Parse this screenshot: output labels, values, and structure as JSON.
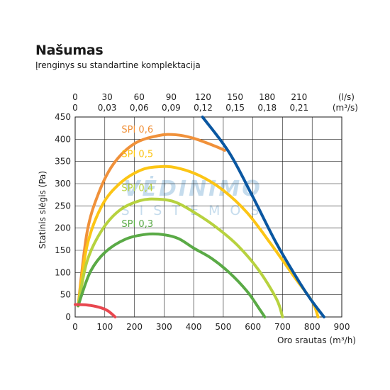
{
  "header": {
    "title": "Našumas",
    "subtitle": "Įrenginys su standartine komplektacija"
  },
  "watermark": {
    "line1": "VĖDINIMO",
    "line2": "SISTEMOS",
    "color": "#bcd6ea"
  },
  "chart_data": {
    "type": "line",
    "xlabel": "Oro srautas (m³/h)",
    "ylabel": "Statinis slėgis (Pa)",
    "xlim": [
      0,
      900
    ],
    "ylim": [
      0,
      450
    ],
    "x_ticks": [
      0,
      100,
      200,
      300,
      400,
      500,
      600,
      700,
      800,
      900
    ],
    "y_ticks": [
      0,
      50,
      100,
      150,
      200,
      250,
      300,
      350,
      400,
      450
    ],
    "grid": true,
    "top_axis": {
      "unit_ls": "(l/s)",
      "unit_m3s": "(m³/s)",
      "ticks": [
        {
          "ls": "0",
          "m3s": "0"
        },
        {
          "ls": "30",
          "m3s": "0,03"
        },
        {
          "ls": "60",
          "m3s": "0,06"
        },
        {
          "ls": "90",
          "m3s": "0,09"
        },
        {
          "ls": "120",
          "m3s": "0,12"
        },
        {
          "ls": "150",
          "m3s": "0,15"
        },
        {
          "ls": "180",
          "m3s": "0,18"
        },
        {
          "ls": "210",
          "m3s": "0,21"
        }
      ]
    },
    "series": [
      {
        "name": "SPI 0,6",
        "color": "#f0913a",
        "label_pos": [
          210,
          415
        ],
        "points": [
          [
            10,
            25
          ],
          [
            40,
            190
          ],
          [
            80,
            280
          ],
          [
            130,
            345
          ],
          [
            200,
            390
          ],
          [
            280,
            408
          ],
          [
            340,
            410
          ],
          [
            400,
            402
          ],
          [
            470,
            385
          ],
          [
            505,
            375
          ]
        ]
      },
      {
        "name": "SPI 0,5",
        "color": "#fcc515",
        "label_pos": [
          210,
          360
        ],
        "points": [
          [
            10,
            25
          ],
          [
            40,
            160
          ],
          [
            90,
            250
          ],
          [
            150,
            300
          ],
          [
            220,
            330
          ],
          [
            280,
            338
          ],
          [
            340,
            336
          ],
          [
            420,
            318
          ],
          [
            500,
            285
          ],
          [
            580,
            235
          ],
          [
            660,
            165
          ],
          [
            740,
            90
          ],
          [
            800,
            35
          ],
          [
            820,
            0
          ]
        ]
      },
      {
        "name": "SPI 0,4",
        "color": "#b7d23f",
        "label_pos": [
          210,
          283
        ],
        "points": [
          [
            10,
            25
          ],
          [
            40,
            125
          ],
          [
            90,
            195
          ],
          [
            150,
            240
          ],
          [
            220,
            262
          ],
          [
            280,
            265
          ],
          [
            340,
            258
          ],
          [
            410,
            232
          ],
          [
            480,
            200
          ],
          [
            550,
            160
          ],
          [
            620,
            105
          ],
          [
            680,
            40
          ],
          [
            700,
            0
          ]
        ]
      },
      {
        "name": "SPI 0,3",
        "color": "#5aaa46",
        "label_pos": [
          210,
          203
        ],
        "points": [
          [
            10,
            25
          ],
          [
            50,
            100
          ],
          [
            100,
            145
          ],
          [
            170,
            175
          ],
          [
            240,
            186
          ],
          [
            300,
            185
          ],
          [
            350,
            176
          ],
          [
            400,
            155
          ],
          [
            460,
            132
          ],
          [
            520,
            100
          ],
          [
            580,
            58
          ],
          [
            620,
            20
          ],
          [
            640,
            0
          ]
        ]
      },
      {
        "name": "",
        "color": "#e8474f",
        "label_pos": null,
        "points": [
          [
            0,
            28
          ],
          [
            40,
            27
          ],
          [
            80,
            22
          ],
          [
            110,
            14
          ],
          [
            135,
            0
          ]
        ]
      },
      {
        "name": "",
        "color": "#0a57a1",
        "label_pos": null,
        "points": [
          [
            430,
            450
          ],
          [
            520,
            370
          ],
          [
            600,
            270
          ],
          [
            680,
            165
          ],
          [
            760,
            75
          ],
          [
            800,
            35
          ],
          [
            840,
            0
          ]
        ]
      }
    ]
  }
}
